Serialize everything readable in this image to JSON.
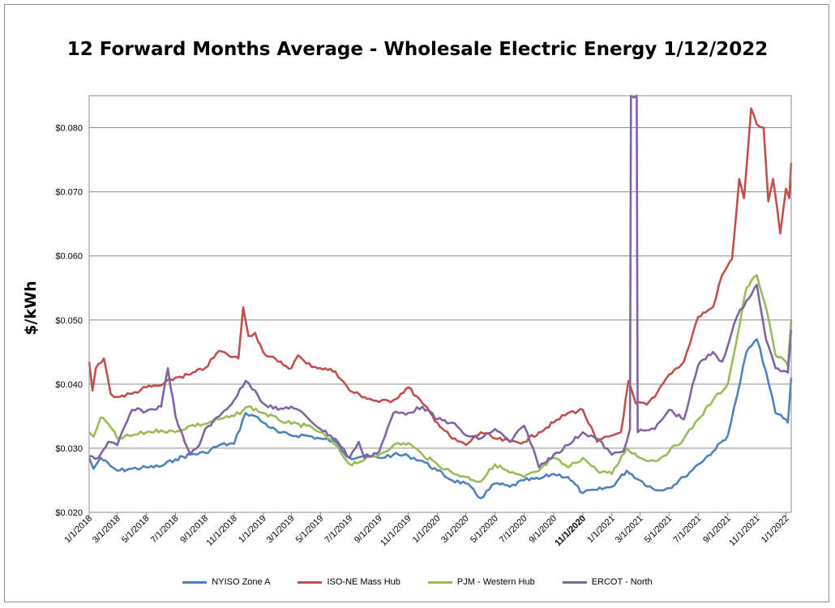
{
  "chart_data": {
    "type": "line",
    "title": "12 Forward Months Average - Wholesale Electric Energy 1/12/2022",
    "ylabel": "$/kWh",
    "xlabel": "",
    "ylim": [
      0.02,
      0.085
    ],
    "yticks": [
      "$0.020",
      "$0.030",
      "$0.040",
      "$0.050",
      "$0.060",
      "$0.070",
      "$0.080"
    ],
    "ytick_values": [
      0.02,
      0.03,
      0.04,
      0.05,
      0.06,
      0.07,
      0.08
    ],
    "xlim": [
      "2018-01-01",
      "2022-01-12"
    ],
    "xticks": [
      "1/1/2018",
      "3/1/2018",
      "5/1/2018",
      "7/1/2018",
      "9/1/2018",
      "11/1/2018",
      "1/1/2019",
      "3/1/2019",
      "5/1/2019",
      "7/1/2019",
      "9/1/2019",
      "11/1/2019",
      "1/1/2020",
      "3/1/2020",
      "5/1/2020",
      "7/1/2020",
      "9/1/2020",
      "11/1/2020",
      "1/1/2021",
      "3/1/2021",
      "5/1/2021",
      "7/1/2021",
      "9/1/2021",
      "11/1/2021",
      "1/1/2022"
    ],
    "xtick_dates": [
      "2018-01-01",
      "2018-03-01",
      "2018-05-01",
      "2018-07-01",
      "2018-09-01",
      "2018-11-01",
      "2019-01-01",
      "2019-03-01",
      "2019-05-01",
      "2019-07-01",
      "2019-09-01",
      "2019-11-01",
      "2020-01-01",
      "2020-03-01",
      "2020-05-01",
      "2020-07-01",
      "2020-09-01",
      "2020-11-01",
      "2021-01-01",
      "2021-03-01",
      "2021-05-01",
      "2021-07-01",
      "2021-09-01",
      "2021-11-01",
      "2022-01-01"
    ],
    "bold_xtick": "11/1/2020",
    "grid": "horizontal",
    "legend_position": "bottom",
    "series": [
      {
        "name": "NYISO Zone A",
        "color": "#4f81bd",
        "points": [
          [
            "2018-01-01",
            0.0285
          ],
          [
            "2018-01-10",
            0.0268
          ],
          [
            "2018-01-25",
            0.0285
          ],
          [
            "2018-02-15",
            0.0272
          ],
          [
            "2018-03-01",
            0.0265
          ],
          [
            "2018-04-01",
            0.0268
          ],
          [
            "2018-05-01",
            0.027
          ],
          [
            "2018-06-01",
            0.0272
          ],
          [
            "2018-07-01",
            0.0283
          ],
          [
            "2018-08-01",
            0.029
          ],
          [
            "2018-09-01",
            0.0293
          ],
          [
            "2018-10-01",
            0.0305
          ],
          [
            "2018-11-01",
            0.0307
          ],
          [
            "2018-11-25",
            0.0355
          ],
          [
            "2018-12-15",
            0.035
          ],
          [
            "2019-01-01",
            0.034
          ],
          [
            "2019-02-01",
            0.0325
          ],
          [
            "2019-03-01",
            0.032
          ],
          [
            "2019-04-01",
            0.032
          ],
          [
            "2019-05-01",
            0.0315
          ],
          [
            "2019-06-01",
            0.031
          ],
          [
            "2019-07-01",
            0.0285
          ],
          [
            "2019-08-01",
            0.0288
          ],
          [
            "2019-09-01",
            0.0285
          ],
          [
            "2019-10-01",
            0.029
          ],
          [
            "2019-11-01",
            0.0288
          ],
          [
            "2019-12-01",
            0.028
          ],
          [
            "2020-01-01",
            0.0265
          ],
          [
            "2020-02-01",
            0.025
          ],
          [
            "2020-03-01",
            0.0245
          ],
          [
            "2020-04-01",
            0.0222
          ],
          [
            "2020-05-01",
            0.0245
          ],
          [
            "2020-06-01",
            0.024
          ],
          [
            "2020-07-01",
            0.025
          ],
          [
            "2020-08-01",
            0.0252
          ],
          [
            "2020-09-01",
            0.026
          ],
          [
            "2020-10-01",
            0.0255
          ],
          [
            "2020-11-01",
            0.023
          ],
          [
            "2020-12-01",
            0.0235
          ],
          [
            "2021-01-01",
            0.024
          ],
          [
            "2021-02-01",
            0.0265
          ],
          [
            "2021-03-01",
            0.025
          ],
          [
            "2021-04-01",
            0.0235
          ],
          [
            "2021-05-01",
            0.0238
          ],
          [
            "2021-06-01",
            0.0255
          ],
          [
            "2021-07-01",
            0.0275
          ],
          [
            "2021-08-01",
            0.0295
          ],
          [
            "2021-09-01",
            0.032
          ],
          [
            "2021-09-20",
            0.038
          ],
          [
            "2021-10-10",
            0.045
          ],
          [
            "2021-11-01",
            0.047
          ],
          [
            "2021-11-20",
            0.042
          ],
          [
            "2021-12-10",
            0.0355
          ],
          [
            "2022-01-01",
            0.0345
          ],
          [
            "2022-01-05",
            0.034
          ],
          [
            "2022-01-12",
            0.041
          ]
        ]
      },
      {
        "name": "ISO-NE Mass Hub",
        "color": "#c0504d",
        "points": [
          [
            "2018-01-01",
            0.0435
          ],
          [
            "2018-01-08",
            0.039
          ],
          [
            "2018-01-15",
            0.0425
          ],
          [
            "2018-02-01",
            0.044
          ],
          [
            "2018-02-15",
            0.0385
          ],
          [
            "2018-03-01",
            0.038
          ],
          [
            "2018-04-01",
            0.0385
          ],
          [
            "2018-05-01",
            0.0395
          ],
          [
            "2018-06-01",
            0.0398
          ],
          [
            "2018-07-01",
            0.041
          ],
          [
            "2018-08-01",
            0.0415
          ],
          [
            "2018-09-01",
            0.0425
          ],
          [
            "2018-10-01",
            0.0452
          ],
          [
            "2018-10-20",
            0.0445
          ],
          [
            "2018-11-10",
            0.044
          ],
          [
            "2018-11-20",
            0.052
          ],
          [
            "2018-12-01",
            0.0475
          ],
          [
            "2018-12-15",
            0.048
          ],
          [
            "2019-01-01",
            0.045
          ],
          [
            "2019-02-01",
            0.0435
          ],
          [
            "2019-03-01",
            0.0425
          ],
          [
            "2019-03-15",
            0.0445
          ],
          [
            "2019-04-01",
            0.0432
          ],
          [
            "2019-05-01",
            0.0425
          ],
          [
            "2019-06-01",
            0.042
          ],
          [
            "2019-07-01",
            0.039
          ],
          [
            "2019-08-01",
            0.038
          ],
          [
            "2019-09-01",
            0.0372
          ],
          [
            "2019-10-01",
            0.0375
          ],
          [
            "2019-11-01",
            0.0395
          ],
          [
            "2019-12-01",
            0.037
          ],
          [
            "2020-01-01",
            0.034
          ],
          [
            "2020-02-01",
            0.0315
          ],
          [
            "2020-03-01",
            0.0305
          ],
          [
            "2020-04-01",
            0.0325
          ],
          [
            "2020-05-01",
            0.0315
          ],
          [
            "2020-06-01",
            0.031
          ],
          [
            "2020-07-01",
            0.031
          ],
          [
            "2020-08-01",
            0.0325
          ],
          [
            "2020-09-01",
            0.034
          ],
          [
            "2020-10-01",
            0.0355
          ],
          [
            "2020-11-01",
            0.036
          ],
          [
            "2020-12-01",
            0.031
          ],
          [
            "2021-01-01",
            0.032
          ],
          [
            "2021-01-20",
            0.0325
          ],
          [
            "2021-02-05",
            0.0405
          ],
          [
            "2021-02-20",
            0.037
          ],
          [
            "2021-03-15",
            0.0368
          ],
          [
            "2021-04-01",
            0.038
          ],
          [
            "2021-05-01",
            0.0415
          ],
          [
            "2021-06-01",
            0.0435
          ],
          [
            "2021-07-01",
            0.0505
          ],
          [
            "2021-08-01",
            0.052
          ],
          [
            "2021-08-20",
            0.057
          ],
          [
            "2021-09-10",
            0.0595
          ],
          [
            "2021-09-25",
            0.072
          ],
          [
            "2021-10-05",
            0.069
          ],
          [
            "2021-10-20",
            0.083
          ],
          [
            "2021-11-01",
            0.0805
          ],
          [
            "2021-11-15",
            0.08
          ],
          [
            "2021-11-25",
            0.0685
          ],
          [
            "2021-12-05",
            0.072
          ],
          [
            "2021-12-20",
            0.0635
          ],
          [
            "2022-01-01",
            0.0705
          ],
          [
            "2022-01-08",
            0.069
          ],
          [
            "2022-01-12",
            0.0745
          ]
        ]
      },
      {
        "name": "PJM - Western Hub",
        "color": "#9bbb59",
        "points": [
          [
            "2018-01-01",
            0.0325
          ],
          [
            "2018-01-10",
            0.0318
          ],
          [
            "2018-01-25",
            0.0348
          ],
          [
            "2018-02-10",
            0.0338
          ],
          [
            "2018-03-01",
            0.0315
          ],
          [
            "2018-04-01",
            0.032
          ],
          [
            "2018-05-01",
            0.0325
          ],
          [
            "2018-06-01",
            0.0328
          ],
          [
            "2018-07-01",
            0.0325
          ],
          [
            "2018-08-01",
            0.0335
          ],
          [
            "2018-09-01",
            0.0338
          ],
          [
            "2018-10-01",
            0.0345
          ],
          [
            "2018-11-01",
            0.035
          ],
          [
            "2018-12-01",
            0.0365
          ],
          [
            "2019-01-01",
            0.0355
          ],
          [
            "2019-02-01",
            0.0345
          ],
          [
            "2019-03-01",
            0.0338
          ],
          [
            "2019-04-01",
            0.0335
          ],
          [
            "2019-05-01",
            0.0325
          ],
          [
            "2019-06-01",
            0.0305
          ],
          [
            "2019-07-01",
            0.0275
          ],
          [
            "2019-08-01",
            0.0282
          ],
          [
            "2019-09-01",
            0.029
          ],
          [
            "2019-10-01",
            0.0305
          ],
          [
            "2019-11-01",
            0.0308
          ],
          [
            "2019-12-01",
            0.029
          ],
          [
            "2020-01-01",
            0.0275
          ],
          [
            "2020-02-01",
            0.0262
          ],
          [
            "2020-03-01",
            0.0255
          ],
          [
            "2020-04-01",
            0.0248
          ],
          [
            "2020-05-01",
            0.0275
          ],
          [
            "2020-06-01",
            0.0262
          ],
          [
            "2020-07-01",
            0.0255
          ],
          [
            "2020-08-01",
            0.0265
          ],
          [
            "2020-09-01",
            0.0285
          ],
          [
            "2020-10-01",
            0.027
          ],
          [
            "2020-11-01",
            0.0285
          ],
          [
            "2020-12-01",
            0.0265
          ],
          [
            "2021-01-01",
            0.026
          ],
          [
            "2021-02-01",
            0.03
          ],
          [
            "2021-03-01",
            0.0285
          ],
          [
            "2021-04-01",
            0.028
          ],
          [
            "2021-05-01",
            0.0295
          ],
          [
            "2021-06-01",
            0.0315
          ],
          [
            "2021-07-01",
            0.0345
          ],
          [
            "2021-08-01",
            0.0375
          ],
          [
            "2021-09-01",
            0.04
          ],
          [
            "2021-09-20",
            0.047
          ],
          [
            "2021-10-10",
            0.055
          ],
          [
            "2021-11-01",
            0.057
          ],
          [
            "2021-11-20",
            0.052
          ],
          [
            "2021-12-10",
            0.0445
          ],
          [
            "2022-01-01",
            0.0435
          ],
          [
            "2022-01-05",
            0.0428
          ],
          [
            "2022-01-12",
            0.05
          ]
        ]
      },
      {
        "name": "ERCOT - North",
        "color": "#8064a2",
        "points": [
          [
            "2018-01-01",
            0.0288
          ],
          [
            "2018-01-20",
            0.0285
          ],
          [
            "2018-02-10",
            0.031
          ],
          [
            "2018-03-01",
            0.0305
          ],
          [
            "2018-04-01",
            0.036
          ],
          [
            "2018-05-01",
            0.0358
          ],
          [
            "2018-06-01",
            0.0365
          ],
          [
            "2018-06-15",
            0.0425
          ],
          [
            "2018-07-01",
            0.035
          ],
          [
            "2018-07-20",
            0.031
          ],
          [
            "2018-08-01",
            0.029
          ],
          [
            "2018-08-20",
            0.0305
          ],
          [
            "2018-09-01",
            0.033
          ],
          [
            "2018-10-01",
            0.035
          ],
          [
            "2018-11-01",
            0.0375
          ],
          [
            "2018-11-25",
            0.0405
          ],
          [
            "2018-12-15",
            0.039
          ],
          [
            "2019-01-01",
            0.037
          ],
          [
            "2019-02-01",
            0.036
          ],
          [
            "2019-03-01",
            0.0365
          ],
          [
            "2019-04-01",
            0.035
          ],
          [
            "2019-05-01",
            0.033
          ],
          [
            "2019-06-01",
            0.0315
          ],
          [
            "2019-07-01",
            0.0285
          ],
          [
            "2019-07-20",
            0.031
          ],
          [
            "2019-08-01",
            0.0285
          ],
          [
            "2019-09-01",
            0.0295
          ],
          [
            "2019-10-01",
            0.0355
          ],
          [
            "2019-11-01",
            0.0355
          ],
          [
            "2019-12-01",
            0.0365
          ],
          [
            "2020-01-01",
            0.0345
          ],
          [
            "2020-02-01",
            0.034
          ],
          [
            "2020-03-01",
            0.032
          ],
          [
            "2020-04-01",
            0.0315
          ],
          [
            "2020-05-01",
            0.033
          ],
          [
            "2020-06-01",
            0.031
          ],
          [
            "2020-07-01",
            0.0335
          ],
          [
            "2020-07-20",
            0.03
          ],
          [
            "2020-08-01",
            0.027
          ],
          [
            "2020-09-01",
            0.029
          ],
          [
            "2020-10-01",
            0.0305
          ],
          [
            "2020-11-01",
            0.0325
          ],
          [
            "2020-12-01",
            0.0315
          ],
          [
            "2021-01-01",
            0.029
          ],
          [
            "2021-01-25",
            0.0295
          ],
          [
            "2021-02-08",
            0.033
          ],
          [
            "2021-02-10",
            0.085
          ],
          [
            "2021-02-22",
            0.085
          ],
          [
            "2021-02-24",
            0.0325
          ],
          [
            "2021-03-15",
            0.0328
          ],
          [
            "2021-04-01",
            0.033
          ],
          [
            "2021-05-01",
            0.036
          ],
          [
            "2021-06-01",
            0.0345
          ],
          [
            "2021-07-01",
            0.043
          ],
          [
            "2021-08-01",
            0.045
          ],
          [
            "2021-08-20",
            0.0435
          ],
          [
            "2021-09-01",
            0.046
          ],
          [
            "2021-09-20",
            0.0505
          ],
          [
            "2021-10-10",
            0.053
          ],
          [
            "2021-11-01",
            0.0555
          ],
          [
            "2021-11-20",
            0.047
          ],
          [
            "2021-12-10",
            0.0425
          ],
          [
            "2022-01-01",
            0.042
          ],
          [
            "2022-01-05",
            0.0418
          ],
          [
            "2022-01-12",
            0.0485
          ]
        ]
      }
    ]
  }
}
